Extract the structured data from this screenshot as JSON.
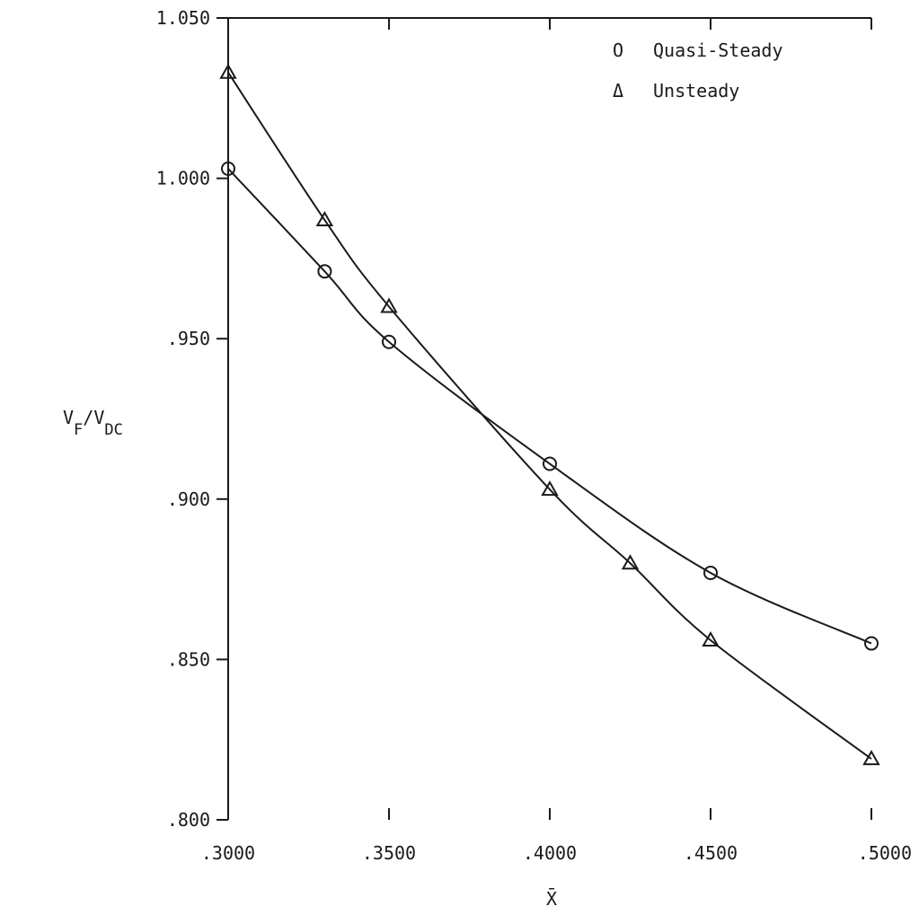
{
  "chart_data": {
    "type": "line",
    "xlabel": "X̄",
    "ylabel_main": "V",
    "ylabel_sub1": "F",
    "ylabel_slash": "/V",
    "ylabel_sub2": "DC",
    "xlim": [
      0.3,
      0.5
    ],
    "ylim": [
      0.8,
      1.05
    ],
    "x_ticks": [
      0.3,
      0.35,
      0.4,
      0.45,
      0.5
    ],
    "x_tick_labels": [
      ".3000",
      ".3500",
      ".4000",
      ".4500",
      ".5000"
    ],
    "y_ticks": [
      0.8,
      0.85,
      0.9,
      0.95,
      1.0,
      1.05
    ],
    "y_tick_labels": [
      ".800",
      ".850",
      ".900",
      ".950",
      "1.000",
      "1.050"
    ],
    "legend_position": "top-right",
    "series": [
      {
        "name": "Quasi-Steady",
        "marker": "circle",
        "symbol": "O",
        "x": [
          0.3,
          0.33,
          0.35,
          0.4,
          0.45,
          0.5
        ],
        "y": [
          1.003,
          0.971,
          0.949,
          0.911,
          0.877,
          0.855
        ]
      },
      {
        "name": "Unsteady",
        "marker": "triangle",
        "symbol": "Δ",
        "x": [
          0.3,
          0.33,
          0.35,
          0.4,
          0.425,
          0.45,
          0.5
        ],
        "y": [
          1.033,
          0.987,
          0.96,
          0.903,
          0.88,
          0.856,
          0.819
        ]
      }
    ]
  }
}
